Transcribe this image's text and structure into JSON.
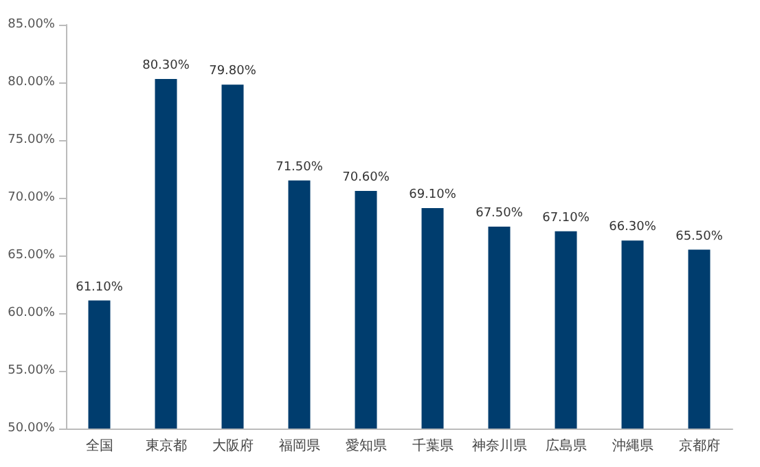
{
  "chart_data": {
    "type": "bar",
    "categories": [
      "全国",
      "東京都",
      "大阪府",
      "福岡県",
      "愛知県",
      "千葉県",
      "神奈川県",
      "広島県",
      "沖縄県",
      "京都府"
    ],
    "values": [
      61.1,
      80.3,
      79.8,
      71.5,
      70.6,
      69.1,
      67.5,
      67.1,
      66.3,
      65.5
    ],
    "value_labels": [
      "61.10%",
      "80.30%",
      "79.80%",
      "71.50%",
      "70.60%",
      "69.10%",
      "67.50%",
      "67.10%",
      "66.30%",
      "65.50%"
    ],
    "color": "#003d6e",
    "ylim": [
      50,
      85
    ],
    "yticks": [
      {
        "value": 50,
        "label": "50.00%"
      },
      {
        "value": 55,
        "label": "55.00%"
      },
      {
        "value": 60,
        "label": "60.00%"
      },
      {
        "value": 65,
        "label": "65.00%"
      },
      {
        "value": 70,
        "label": "70.00%"
      },
      {
        "value": 75,
        "label": "75.00%"
      },
      {
        "value": 80,
        "label": "80.00%"
      },
      {
        "value": 85,
        "label": "85.00%"
      }
    ]
  }
}
